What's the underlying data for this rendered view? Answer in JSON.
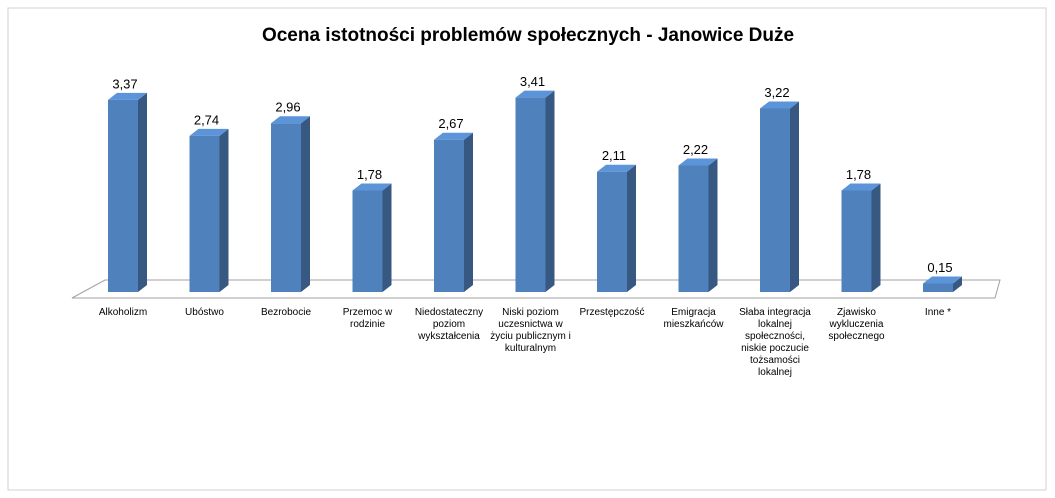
{
  "chart_data": {
    "type": "bar3d",
    "title": "Ocena istotności problemów społecznych - Janowice Duże",
    "categories": [
      "Alkoholizm",
      "Ubóstwo",
      "Bezrobocie",
      "Przemoc w rodzinie",
      "Niedostateczny poziom wykształcenia",
      "Niski poziom uczesnictwa w życiu publicznym i kulturalnym",
      "Przestępczość",
      "Emigracja mieszkańców",
      "Słaba integracja lokalnej społeczności, niskie poczucie tożsamości lokalnej",
      "Zjawisko wykluczenia społecznego",
      "Inne *"
    ],
    "values": [
      3.37,
      2.74,
      2.96,
      1.78,
      2.67,
      3.41,
      2.11,
      2.22,
      3.22,
      1.78,
      0.15
    ],
    "value_labels": [
      "3,37",
      "2,74",
      "2,96",
      "1,78",
      "2,67",
      "3,41",
      "2,11",
      "2,22",
      "3,22",
      "1,78",
      "0,15"
    ],
    "color": "#4f81bd"
  }
}
